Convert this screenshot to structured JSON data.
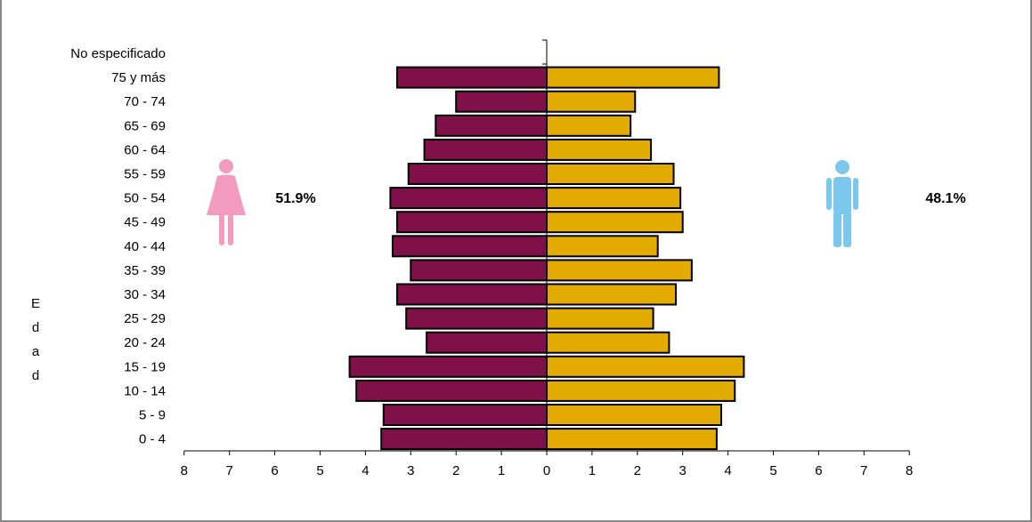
{
  "chart_data": {
    "type": "bar",
    "orientation": "horizontal",
    "categories": [
      "No especificado",
      "75 y más",
      "70 - 74",
      "65 - 69",
      "60 - 64",
      "55 - 59",
      "50 - 54",
      "45 - 49",
      "40 - 44",
      "35 - 39",
      "30 - 34",
      "25 - 29",
      "20 - 24",
      "15 - 19",
      "10 - 14",
      "5 - 9",
      "0 - 4"
    ],
    "series": [
      {
        "values": [
          0,
          3.3,
          2.0,
          2.45,
          2.7,
          3.05,
          3.45,
          3.3,
          3.4,
          3.0,
          3.3,
          3.1,
          2.65,
          4.35,
          4.2,
          3.6,
          3.65
        ],
        "color": "#7f1148",
        "side": "left"
      },
      {
        "values": [
          0,
          3.8,
          1.95,
          1.85,
          2.3,
          2.8,
          2.95,
          3.0,
          2.45,
          3.2,
          2.85,
          2.35,
          2.7,
          4.35,
          4.15,
          3.85,
          3.75
        ],
        "color": "#e3ab00",
        "side": "right"
      }
    ],
    "x_ticks": [
      "8",
      "7",
      "6",
      "5",
      "4",
      "3",
      "2",
      "1",
      "0",
      "1",
      "2",
      "3",
      "4",
      "5",
      "6",
      "7",
      "8"
    ],
    "xlim": [
      -8,
      8
    ],
    "ylabel": "Edad",
    "ylabel_letters": [
      "E",
      "d",
      "a",
      "d"
    ],
    "annotations": {
      "female_pct": "51.9%",
      "male_pct": "48.1%"
    },
    "icons": {
      "female": {
        "name": "woman-icon",
        "color": "#f29bbf"
      },
      "male": {
        "name": "man-icon",
        "color": "#7cc7ee"
      }
    },
    "grid": false
  }
}
